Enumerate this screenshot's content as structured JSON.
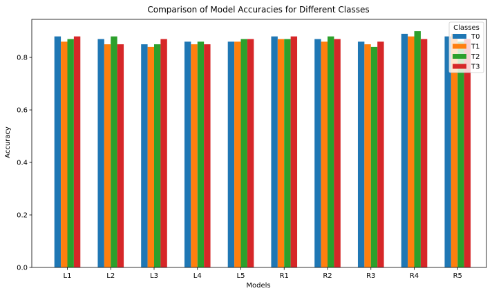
{
  "chart_data": {
    "type": "bar",
    "title": "Comparison of Model Accuracies for Different Classes",
    "xlabel": "Models",
    "ylabel": "Accuracy",
    "categories": [
      "L1",
      "L2",
      "L3",
      "L4",
      "L5",
      "R1",
      "R2",
      "R3",
      "R4",
      "R5"
    ],
    "ylim": [
      0,
      0.945
    ],
    "yticks": [
      "0.0",
      "0.2",
      "0.4",
      "0.6",
      "0.8"
    ],
    "grid": false,
    "legend": {
      "title": "Classes",
      "position": "top-right"
    },
    "series": [
      {
        "name": "T0",
        "color": "#1f77b4",
        "values": [
          0.88,
          0.87,
          0.85,
          0.86,
          0.86,
          0.88,
          0.87,
          0.86,
          0.89,
          0.88
        ]
      },
      {
        "name": "T1",
        "color": "#ff7f0e",
        "values": [
          0.86,
          0.85,
          0.84,
          0.85,
          0.86,
          0.87,
          0.86,
          0.85,
          0.88,
          0.89
        ]
      },
      {
        "name": "T2",
        "color": "#2ca02c",
        "values": [
          0.87,
          0.88,
          0.85,
          0.86,
          0.87,
          0.87,
          0.88,
          0.84,
          0.9,
          0.86
        ]
      },
      {
        "name": "T3",
        "color": "#d62728",
        "values": [
          0.88,
          0.85,
          0.87,
          0.85,
          0.87,
          0.88,
          0.87,
          0.86,
          0.87,
          0.87
        ]
      }
    ]
  }
}
